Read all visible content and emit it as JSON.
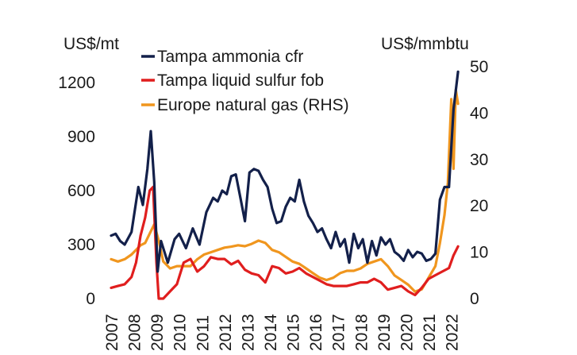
{
  "chart_data": {
    "type": "line",
    "ylabel_left": "US$/mt",
    "ylabel_right": "US$/mmbtu",
    "x_ticks": [
      "2007",
      "2008",
      "2009",
      "2010",
      "2011",
      "2012",
      "2013",
      "2014",
      "2015",
      "2016",
      "2017",
      "2018",
      "2019",
      "2020",
      "2021",
      "2022"
    ],
    "xlim": [
      2007,
      2022.4
    ],
    "y_left": {
      "ticks": [
        "0",
        "300",
        "600",
        "900",
        "1200"
      ],
      "ylim": [
        0,
        1200
      ]
    },
    "y_right": {
      "ticks": [
        "0",
        "10",
        "20",
        "30",
        "40",
        "50"
      ],
      "ylim": [
        0,
        50
      ]
    },
    "legend": {
      "position": "top-center"
    },
    "grid": false,
    "series": [
      {
        "name": "Tampa ammonia cfr",
        "axis": "left",
        "color": "#13204a",
        "x": [
          2007.0,
          2007.2,
          2007.4,
          2007.6,
          2007.9,
          2008.2,
          2008.4,
          2008.6,
          2008.75,
          2008.9,
          2009.05,
          2009.2,
          2009.5,
          2009.8,
          2010.0,
          2010.3,
          2010.6,
          2010.9,
          2011.2,
          2011.5,
          2011.7,
          2011.9,
          2012.1,
          2012.3,
          2012.5,
          2012.7,
          2012.9,
          2013.1,
          2013.3,
          2013.5,
          2013.7,
          2013.9,
          2014.1,
          2014.3,
          2014.5,
          2014.7,
          2014.9,
          2015.1,
          2015.3,
          2015.5,
          2015.7,
          2015.9,
          2016.1,
          2016.3,
          2016.5,
          2016.7,
          2016.9,
          2017.1,
          2017.3,
          2017.5,
          2017.7,
          2017.9,
          2018.1,
          2018.3,
          2018.5,
          2018.7,
          2018.9,
          2019.1,
          2019.3,
          2019.5,
          2019.7,
          2019.9,
          2020.1,
          2020.3,
          2020.5,
          2020.7,
          2020.9,
          2021.1,
          2021.3,
          2021.5,
          2021.7,
          2021.9,
          2022.1,
          2022.3
        ],
        "values": [
          350,
          360,
          320,
          300,
          370,
          620,
          520,
          720,
          930,
          650,
          150,
          320,
          200,
          330,
          360,
          280,
          390,
          300,
          480,
          560,
          540,
          600,
          580,
          680,
          690,
          560,
          430,
          700,
          720,
          710,
          660,
          620,
          500,
          420,
          430,
          510,
          560,
          540,
          660,
          540,
          460,
          420,
          370,
          390,
          330,
          280,
          370,
          290,
          330,
          200,
          360,
          280,
          330,
          200,
          320,
          240,
          340,
          300,
          330,
          260,
          240,
          210,
          270,
          230,
          260,
          250,
          210,
          220,
          250,
          550,
          620,
          620,
          1050,
          1260
        ]
      },
      {
        "name": "Tampa liquid sulfur fob",
        "axis": "left",
        "color": "#e01e1e",
        "x": [
          2007.0,
          2007.3,
          2007.6,
          2007.9,
          2008.1,
          2008.3,
          2008.5,
          2008.7,
          2008.85,
          2009.0,
          2009.1,
          2009.3,
          2009.6,
          2009.9,
          2010.2,
          2010.5,
          2010.8,
          2011.1,
          2011.4,
          2011.7,
          2012.0,
          2012.3,
          2012.6,
          2012.9,
          2013.2,
          2013.5,
          2013.8,
          2014.1,
          2014.4,
          2014.7,
          2015.0,
          2015.3,
          2015.6,
          2015.9,
          2016.2,
          2016.5,
          2016.8,
          2017.1,
          2017.4,
          2017.7,
          2018.0,
          2018.3,
          2018.6,
          2018.9,
          2019.2,
          2019.5,
          2019.8,
          2020.1,
          2020.4,
          2020.7,
          2021.0,
          2021.3,
          2021.6,
          2021.9,
          2022.1,
          2022.3
        ],
        "values": [
          60,
          70,
          80,
          120,
          200,
          350,
          450,
          600,
          620,
          200,
          0,
          0,
          40,
          80,
          200,
          220,
          150,
          180,
          230,
          220,
          220,
          190,
          210,
          160,
          140,
          130,
          90,
          180,
          170,
          140,
          150,
          170,
          140,
          120,
          100,
          80,
          70,
          70,
          70,
          80,
          90,
          90,
          110,
          90,
          50,
          60,
          70,
          40,
          20,
          60,
          110,
          130,
          150,
          170,
          240,
          290
        ]
      },
      {
        "name": "Europe natural gas (RHS)",
        "axis": "right",
        "color": "#f0961e",
        "x": [
          2007.0,
          2007.3,
          2007.6,
          2007.9,
          2008.1,
          2008.3,
          2008.5,
          2008.7,
          2008.9,
          2009.1,
          2009.3,
          2009.6,
          2009.9,
          2010.2,
          2010.5,
          2010.8,
          2011.1,
          2011.4,
          2011.7,
          2012.0,
          2012.3,
          2012.6,
          2012.9,
          2013.2,
          2013.5,
          2013.8,
          2014.1,
          2014.4,
          2014.7,
          2015.0,
          2015.3,
          2015.6,
          2015.9,
          2016.2,
          2016.5,
          2016.8,
          2017.1,
          2017.4,
          2017.7,
          2018.0,
          2018.3,
          2018.6,
          2018.9,
          2019.2,
          2019.5,
          2019.8,
          2020.1,
          2020.4,
          2020.7,
          2021.0,
          2021.3,
          2021.5,
          2021.7,
          2021.85,
          2022.0,
          2022.1,
          2022.2,
          2022.3
        ],
        "values": [
          8.5,
          8.0,
          8.5,
          9.5,
          10.5,
          11.5,
          12.0,
          14.0,
          16.0,
          12.5,
          8.0,
          6.5,
          7.0,
          7.0,
          7.0,
          8.5,
          9.5,
          10.0,
          10.5,
          11.0,
          11.2,
          11.5,
          11.3,
          11.8,
          12.5,
          12.0,
          10.5,
          10.0,
          9.0,
          8.0,
          7.5,
          6.5,
          5.5,
          4.5,
          4.0,
          4.5,
          5.5,
          6.0,
          6.0,
          6.5,
          7.5,
          8.0,
          8.5,
          7.0,
          5.0,
          4.0,
          3.0,
          1.5,
          2.0,
          4.5,
          7.0,
          12.0,
          18.0,
          25.0,
          43.0,
          28.0,
          45.0,
          42.0
        ]
      }
    ]
  }
}
